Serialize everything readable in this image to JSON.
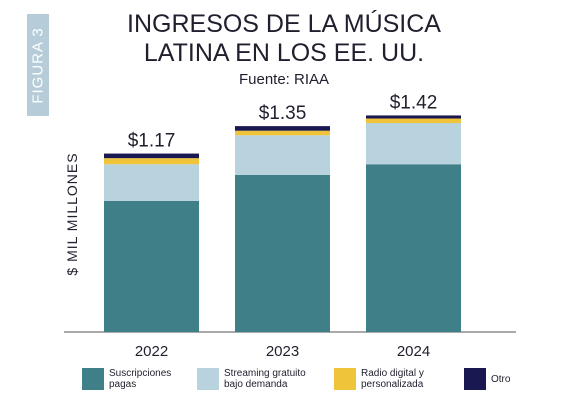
{
  "figure_label": "FIGURA 3",
  "chart_data": {
    "type": "bar",
    "stacked": true,
    "title": "INGRESOS DE LA MÚSICA LATINA EN LOS EE. UU.",
    "subtitle": "Fuente: RIAA",
    "ylabel": "$ MIL MILLONES",
    "xlabel": "",
    "categories": [
      "2022",
      "2023",
      "2024"
    ],
    "totals_labels": [
      "$1.17",
      "$1.35",
      "$1.42"
    ],
    "ylim": [
      0,
      1.5
    ],
    "grid": false,
    "legend_position": "bottom",
    "series": [
      {
        "name": "Suscripciones pagas",
        "color": "#3f8088",
        "values": [
          0.86,
          1.03,
          1.1
        ]
      },
      {
        "name": "Streaming gratuito bajo demanda",
        "color": "#b8d2de",
        "values": [
          0.24,
          0.26,
          0.27
        ]
      },
      {
        "name": "Radio digital y personalizada",
        "color": "#efc33a",
        "values": [
          0.04,
          0.03,
          0.03
        ]
      },
      {
        "name": "Otro",
        "color": "#1a1850",
        "values": [
          0.03,
          0.03,
          0.02
        ]
      }
    ]
  }
}
